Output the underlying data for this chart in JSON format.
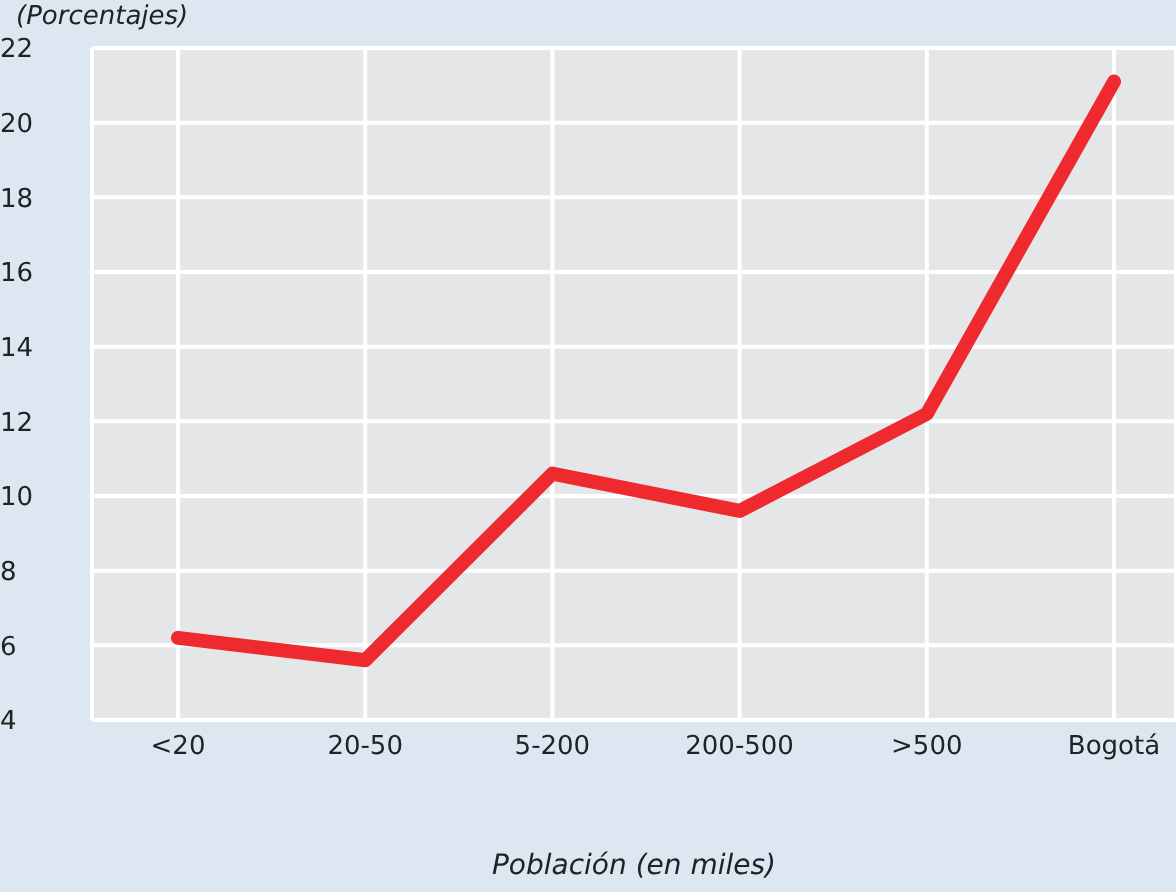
{
  "chart_data": {
    "type": "line",
    "ylabel": "(Porcentajes)",
    "xlabel": "Población (en miles)",
    "categories": [
      "<20",
      "20-50",
      "5-200",
      "200-500",
      ">500",
      "Bogotá"
    ],
    "series": [
      {
        "color": "#ee2a2e",
        "values": [
          6.2,
          5.6,
          10.6,
          9.6,
          12.2,
          21.1
        ]
      }
    ],
    "ylim": [
      4,
      22
    ],
    "yticks": [
      4,
      6,
      8,
      10,
      12,
      14,
      16,
      18,
      20,
      22
    ],
    "grid": true,
    "marker": "none",
    "line_style": "solid"
  }
}
